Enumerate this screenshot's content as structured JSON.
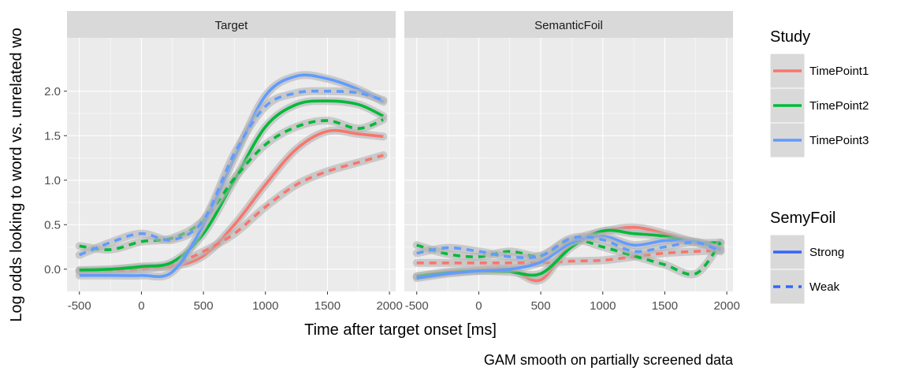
{
  "chart_data": {
    "type": "line",
    "ylabel": "Log odds looking to word vs. unrelated wo",
    "xlabel": "Time after target onset [ms]",
    "caption": "GAM smooth on partially screened data",
    "x_ticks": [
      -500,
      0,
      500,
      1000,
      1500,
      2000
    ],
    "y_ticks": [
      0.0,
      0.5,
      1.0,
      1.5,
      2.0
    ],
    "y_tick_labels": [
      "0.0",
      "0.5",
      "1.0",
      "1.5",
      "2.0"
    ],
    "xlim": [
      -600,
      2050
    ],
    "ylim": [
      -0.25,
      2.6
    ],
    "grid": true,
    "x": [
      -500,
      -250,
      0,
      250,
      500,
      750,
      1000,
      1250,
      1500,
      1750,
      1950
    ],
    "legend": {
      "position": "right",
      "study_title": "Study",
      "study_entries": [
        {
          "label": "TimePoint1",
          "color": "#F8766D"
        },
        {
          "label": "TimePoint2",
          "color": "#00BA38"
        },
        {
          "label": "TimePoint3",
          "color": "#619CFF"
        }
      ],
      "foil_title": "SemyFoil",
      "foil_entries": [
        {
          "label": "Strong",
          "linetype": "solid"
        },
        {
          "label": "Weak",
          "linetype": "dashed"
        }
      ],
      "key_line_color": "#3366FF"
    },
    "panels": [
      {
        "strip": "Target",
        "series": [
          {
            "study": "TimePoint1",
            "foil": "Strong",
            "values": [
              -0.02,
              -0.01,
              0.02,
              0.03,
              0.15,
              0.5,
              0.95,
              1.35,
              1.55,
              1.52,
              1.49
            ]
          },
          {
            "study": "TimePoint1",
            "foil": "Weak",
            "values": [
              -0.02,
              -0.02,
              0.0,
              0.05,
              0.2,
              0.4,
              0.7,
              0.95,
              1.1,
              1.2,
              1.28
            ]
          },
          {
            "study": "TimePoint2",
            "foil": "Strong",
            "values": [
              -0.01,
              0.0,
              0.03,
              0.08,
              0.4,
              1.0,
              1.6,
              1.85,
              1.89,
              1.85,
              1.72
            ]
          },
          {
            "study": "TimePoint2",
            "foil": "Weak",
            "values": [
              0.26,
              0.22,
              0.31,
              0.35,
              0.55,
              1.02,
              1.4,
              1.6,
              1.67,
              1.58,
              1.68
            ]
          },
          {
            "study": "TimePoint3",
            "foil": "Strong",
            "values": [
              -0.07,
              -0.07,
              -0.07,
              -0.03,
              0.5,
              1.25,
              1.95,
              2.17,
              2.14,
              2.02,
              1.88
            ]
          },
          {
            "study": "TimePoint3",
            "foil": "Weak",
            "values": [
              0.16,
              0.3,
              0.4,
              0.33,
              0.55,
              1.3,
              1.83,
              1.98,
              2.0,
              1.98,
              1.9
            ]
          }
        ]
      },
      {
        "strip": "SemanticFoil",
        "series": [
          {
            "study": "TimePoint1",
            "foil": "Strong",
            "values": [
              -0.08,
              -0.03,
              -0.01,
              0.0,
              -0.12,
              0.3,
              0.42,
              0.47,
              0.4,
              0.3,
              0.25
            ]
          },
          {
            "study": "TimePoint1",
            "foil": "Weak",
            "values": [
              0.07,
              0.07,
              0.07,
              0.07,
              0.07,
              0.09,
              0.1,
              0.14,
              0.18,
              0.2,
              0.21
            ]
          },
          {
            "study": "TimePoint2",
            "foil": "Strong",
            "values": [
              -0.08,
              -0.04,
              -0.02,
              -0.03,
              -0.05,
              0.25,
              0.43,
              0.4,
              0.37,
              0.3,
              0.3
            ]
          },
          {
            "study": "TimePoint2",
            "foil": "Weak",
            "values": [
              0.27,
              0.17,
              0.14,
              0.2,
              0.15,
              0.33,
              0.25,
              0.15,
              0.05,
              -0.05,
              0.3
            ]
          },
          {
            "study": "TimePoint3",
            "foil": "Strong",
            "values": [
              -0.1,
              -0.05,
              -0.02,
              0.0,
              0.08,
              0.3,
              0.37,
              0.27,
              0.32,
              0.31,
              0.22
            ]
          },
          {
            "study": "TimePoint3",
            "foil": "Weak",
            "values": [
              0.18,
              0.24,
              0.2,
              0.14,
              0.15,
              0.35,
              0.33,
              0.2,
              0.25,
              0.3,
              0.2
            ]
          }
        ]
      }
    ]
  }
}
